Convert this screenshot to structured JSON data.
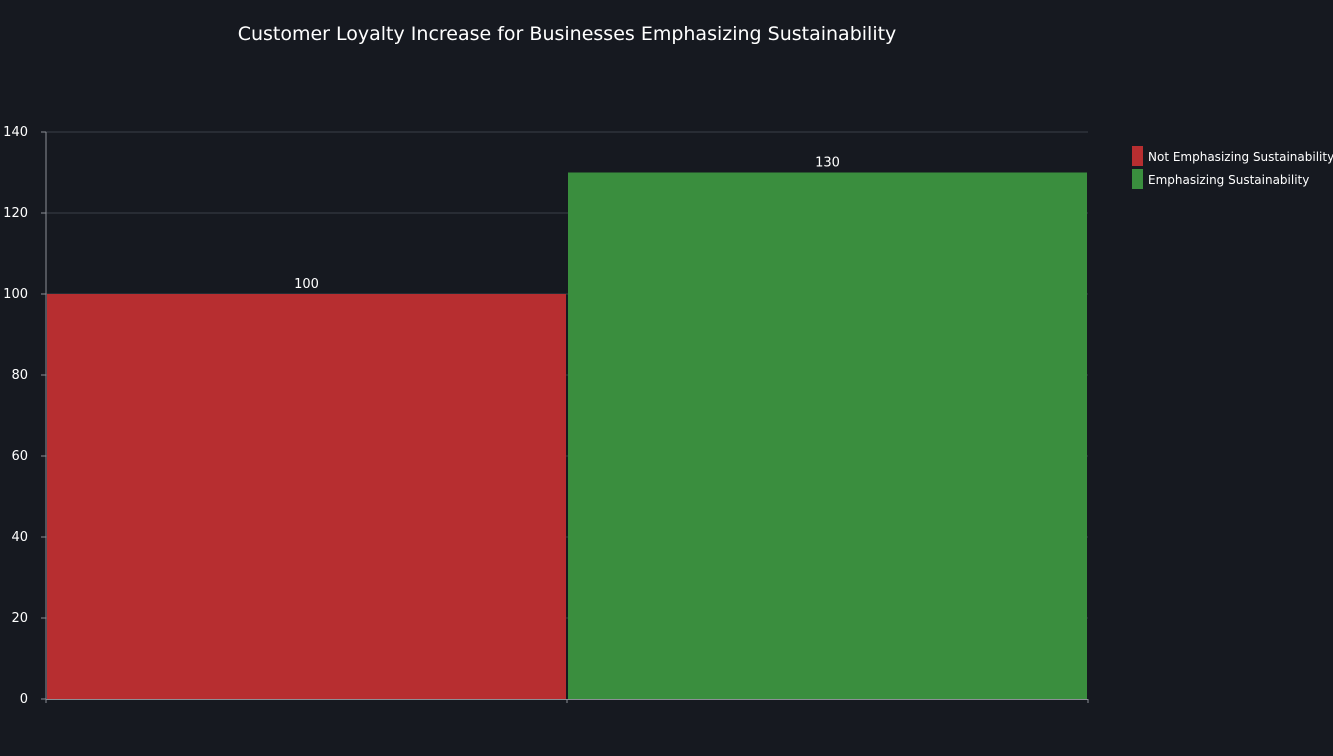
{
  "chart_data": {
    "type": "bar",
    "title": "Customer Loyalty Increase for Businesses Emphasizing Sustainability",
    "xlabel": "",
    "ylabel": "",
    "categories": [
      "Not Emphasizing Sustainability",
      "Emphasizing Sustainability"
    ],
    "values": [
      100,
      130
    ],
    "colors": [
      "#b72e30",
      "#3a8e3e"
    ],
    "ylim": [
      0,
      140
    ],
    "yticks": [
      0,
      20,
      40,
      60,
      80,
      100,
      120,
      140
    ],
    "data_labels": [
      "100",
      "130"
    ],
    "grid": true,
    "legend": {
      "placement": "right",
      "entries": [
        "Not Emphasizing Sustainability",
        "Emphasizing Sustainability"
      ]
    }
  },
  "theme": {
    "background": "#161920",
    "grid_color": "#3a3e48",
    "axis_color": "#8c8f96",
    "text_color": "#ffffff"
  }
}
